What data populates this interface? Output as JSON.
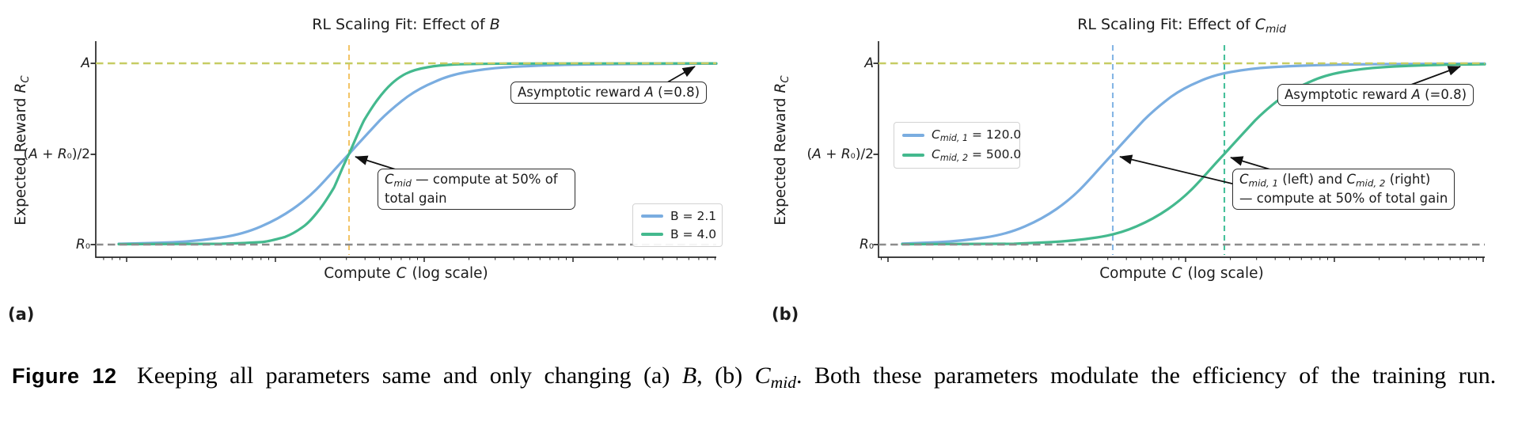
{
  "colors": {
    "curve_blue": "#7aade0",
    "curve_green": "#44b98e",
    "asymptote_dash_khaki": "#c6cc63",
    "baseline_dash_gray": "#8c8c8c",
    "cmid_dash_orange": "#f3c568",
    "cmid_dash_blue": "#85b5e5",
    "cmid_dash_green": "#46c09a",
    "axis": "#262626"
  },
  "panel_a": {
    "label": "(a)",
    "title": {
      "prefix": "RL Scaling Fit: Effect of ",
      "var": "B"
    },
    "ylabel": {
      "prefix": "Expected Reward ",
      "var": "R",
      "sub": "C"
    },
    "xlabel": {
      "pre": "Compute",
      "var": "C",
      "post": "(log scale)"
    },
    "yticks": {
      "a": "A",
      "mid_open": "(",
      "mid_v1": "A",
      "mid_plus": " + ",
      "mid_v2": "R",
      "mid_sub": "₀",
      "mid_close": ")/2",
      "r0_v": "R",
      "r0_sub": "₀"
    },
    "legend": [
      {
        "label": "B = 2.1"
      },
      {
        "label": "B = 4.0"
      }
    ],
    "annot_mid": {
      "var": "C",
      "sub": "mid",
      "rest": " — compute at 50% of total gain"
    },
    "annot_asym": {
      "pre": "Asymptotic reward ",
      "var": "A",
      "post": " (=0.8)"
    }
  },
  "panel_b": {
    "label": "(b)",
    "title": {
      "prefix": "RL Scaling Fit: Effect of ",
      "var": "C",
      "sub": "mid"
    },
    "ylabel": {
      "prefix": "Expected Reward ",
      "var": "R",
      "sub": "C"
    },
    "xlabel": {
      "pre": "Compute",
      "var": "C",
      "post": "(log scale)"
    },
    "yticks": {
      "a": "A",
      "mid_open": "(",
      "mid_v1": "A",
      "mid_plus": " + ",
      "mid_v2": "R",
      "mid_sub": "₀",
      "mid_close": ")/2",
      "r0_v": "R",
      "r0_sub": "₀"
    },
    "legend": [
      {
        "var": "C",
        "sub": "mid, 1",
        "rest": " = 120.0"
      },
      {
        "var": "C",
        "sub": "mid, 2",
        "rest": " = 500.0"
      }
    ],
    "annot_mid": {
      "v1": "C",
      "s1": "mid, 1",
      "m1": " (left) and ",
      "v2": "C",
      "s2": "mid, 2",
      "m2": " (right)",
      "line2": "— compute at 50% of total gain"
    },
    "annot_asym": {
      "pre": "Asymptotic reward ",
      "var": "A",
      "post": " (=0.8)"
    }
  },
  "caption": {
    "label": "Figure 12",
    "t1": " Keeping all parameters same and only changing (a) ",
    "vb": "B",
    "t2": ", (b) ",
    "vc": "C",
    "vcs": "mid",
    "t3": ". Both these parameters modulate the efficiency of the training run."
  },
  "chart_data": [
    {
      "type": "line",
      "title": "RL Scaling Fit: Effect of B",
      "xlabel": "Compute C (log scale)",
      "x_scale": "log",
      "ylabel": "Expected Reward R_C",
      "y_tick_labels": [
        "R₀",
        "(A + R₀)/2",
        "A"
      ],
      "asymptotic_reward_A": 0.8,
      "series": [
        {
          "name": "B = 2.1",
          "B": 2.1,
          "color": "#7aade0",
          "shape": "sigmoid from R₀ to A vs log-compute, midpoint at C_mid, shallower slope"
        },
        {
          "name": "B = 4.0",
          "B": 4.0,
          "color": "#44b98e",
          "shape": "sigmoid from R₀ to A vs log-compute, same midpoint C_mid, steeper slope"
        }
      ],
      "reference_lines": [
        {
          "type": "hline",
          "at": "A",
          "style": "dashed",
          "color": "#c6cc63"
        },
        {
          "type": "hline",
          "at": "R₀",
          "style": "dashed",
          "color": "#8c8c8c"
        },
        {
          "type": "vline",
          "at": "C_mid",
          "style": "dashed",
          "color": "#f3c568"
        }
      ],
      "annotations": [
        "C_mid — compute at 50% of total gain",
        "Asymptotic reward A (=0.8)"
      ],
      "legend_position": "lower right"
    },
    {
      "type": "line",
      "title": "RL Scaling Fit: Effect of C_mid",
      "xlabel": "Compute C (log scale)",
      "x_scale": "log",
      "ylabel": "Expected Reward R_C",
      "y_tick_labels": [
        "R₀",
        "(A + R₀)/2",
        "A"
      ],
      "asymptotic_reward_A": 0.8,
      "series": [
        {
          "name": "C_mid,1 = 120.0",
          "C_mid": 120.0,
          "color": "#7aade0",
          "shape": "sigmoid from R₀ to A vs log-compute, midpoint at C_mid,1 (left dashed line)"
        },
        {
          "name": "C_mid,2 = 500.0",
          "C_mid": 500.0,
          "color": "#44b98e",
          "shape": "same sigmoid shifted right, midpoint at C_mid,2 (right dashed line)"
        }
      ],
      "reference_lines": [
        {
          "type": "hline",
          "at": "A",
          "style": "dashed",
          "color": "#c6cc63"
        },
        {
          "type": "hline",
          "at": "R₀",
          "style": "dashed",
          "color": "#8c8c8c"
        },
        {
          "type": "vline",
          "at": "C_mid,1",
          "style": "dashed",
          "color": "#85b5e5"
        },
        {
          "type": "vline",
          "at": "C_mid,2",
          "style": "dashed",
          "color": "#46c09a"
        }
      ],
      "annotations": [
        "C_mid,1 (left) and C_mid,2 (right) — compute at 50% of total gain",
        "Asymptotic reward A (=0.8)"
      ],
      "legend_position": "upper left"
    }
  ]
}
